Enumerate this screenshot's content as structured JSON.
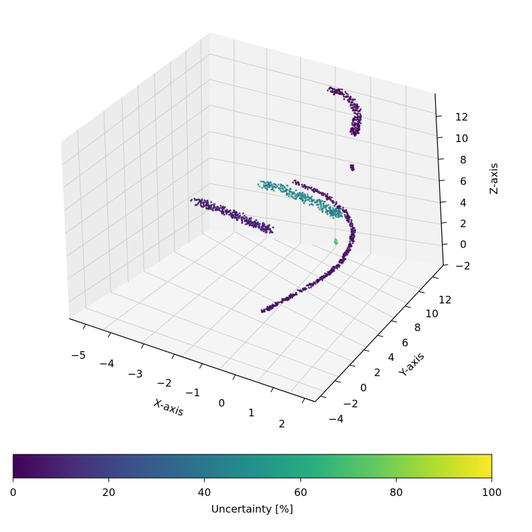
{
  "chart_data": {
    "type": "scatter",
    "projection": "3d",
    "title": "",
    "xlabel": "X-axis",
    "ylabel": "Y-axis",
    "zlabel": "Z-axis",
    "xticks": [
      "−5",
      "−4",
      "−3",
      "−2",
      "−1",
      "0",
      "1",
      "2"
    ],
    "yticks": [
      "−4",
      "−2",
      "0",
      "2",
      "4",
      "6",
      "8",
      "10",
      "12"
    ],
    "zticks": [
      "−2",
      "0",
      "2",
      "4",
      "6",
      "8",
      "10",
      "12"
    ],
    "grid": true,
    "colormap": "viridis",
    "colorbar": {
      "label": "Uncertainty [%]",
      "ticks": [
        "0",
        "20",
        "40",
        "60",
        "80",
        "100"
      ],
      "range": [
        0,
        100
      ],
      "placement": "bottom"
    },
    "colors": {
      "low": "#440154",
      "mid": "#21918c",
      "high": "#fde725",
      "pane": "#f2f2f2",
      "grid": "#d0d0d0"
    },
    "clusters": [
      {
        "id": "top-arc",
        "uncertainty": 2
      },
      {
        "id": "small-blob",
        "uncertainty": 5
      },
      {
        "id": "left-band",
        "uncertainty": 8
      },
      {
        "id": "middle-band",
        "uncertainty": 45
      },
      {
        "id": "long-arc",
        "uncertainty": 5
      },
      {
        "id": "arc-highlight",
        "uncertainty": 72
      }
    ]
  }
}
